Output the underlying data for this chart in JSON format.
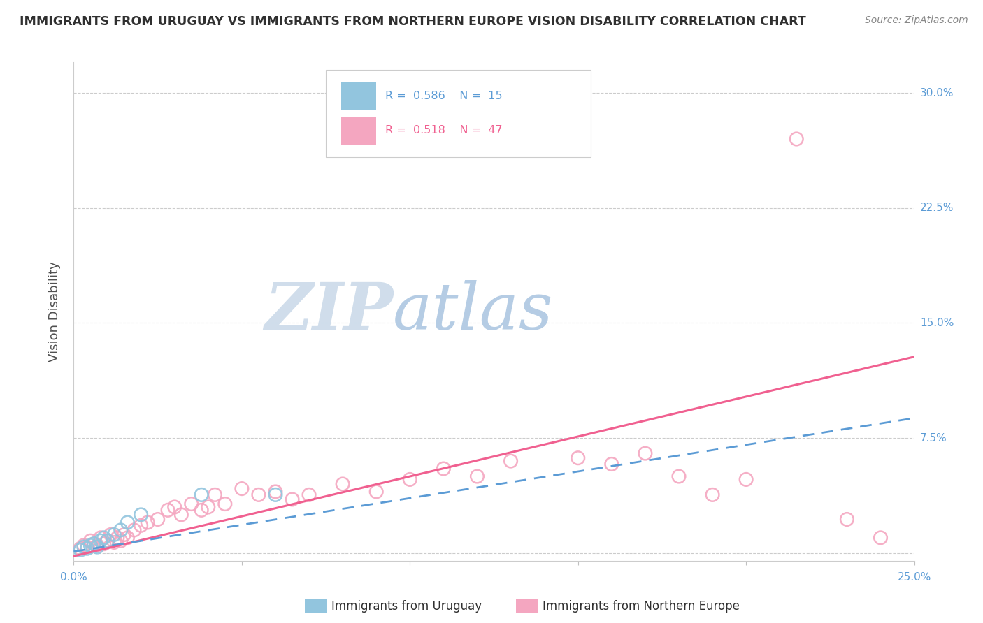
{
  "title": "IMMIGRANTS FROM URUGUAY VS IMMIGRANTS FROM NORTHERN EUROPE VISION DISABILITY CORRELATION CHART",
  "source": "Source: ZipAtlas.com",
  "ylabel": "Vision Disability",
  "xlim": [
    0.0,
    0.25
  ],
  "ylim": [
    -0.005,
    0.32
  ],
  "color_uruguay": "#92C5DE",
  "color_n_europe": "#F4A6C0",
  "color_line_uruguay": "#5B9BD5",
  "color_line_n_europe": "#F06090",
  "color_title": "#303030",
  "color_axis_labels": "#5B9BD5",
  "color_watermark_zip": "#C8D8E8",
  "color_watermark_atlas": "#A8C4E0",
  "uruguay_x": [
    0.002,
    0.003,
    0.004,
    0.005,
    0.006,
    0.007,
    0.008,
    0.009,
    0.01,
    0.012,
    0.014,
    0.016,
    0.02,
    0.038,
    0.06
  ],
  "uruguay_y": [
    0.002,
    0.004,
    0.003,
    0.005,
    0.006,
    0.004,
    0.008,
    0.01,
    0.008,
    0.012,
    0.015,
    0.02,
    0.025,
    0.038,
    0.038
  ],
  "n_europe_x": [
    0.002,
    0.003,
    0.004,
    0.005,
    0.006,
    0.007,
    0.008,
    0.009,
    0.01,
    0.011,
    0.012,
    0.013,
    0.014,
    0.015,
    0.016,
    0.018,
    0.02,
    0.022,
    0.025,
    0.028,
    0.03,
    0.032,
    0.035,
    0.038,
    0.04,
    0.042,
    0.045,
    0.05,
    0.055,
    0.06,
    0.065,
    0.07,
    0.08,
    0.09,
    0.1,
    0.11,
    0.12,
    0.13,
    0.15,
    0.16,
    0.17,
    0.18,
    0.19,
    0.2,
    0.215,
    0.23,
    0.24
  ],
  "n_europe_y": [
    0.003,
    0.005,
    0.004,
    0.008,
    0.006,
    0.005,
    0.01,
    0.006,
    0.008,
    0.012,
    0.007,
    0.01,
    0.008,
    0.012,
    0.01,
    0.015,
    0.018,
    0.02,
    0.022,
    0.028,
    0.03,
    0.025,
    0.032,
    0.028,
    0.03,
    0.038,
    0.032,
    0.042,
    0.038,
    0.04,
    0.035,
    0.038,
    0.045,
    0.04,
    0.048,
    0.055,
    0.05,
    0.06,
    0.062,
    0.058,
    0.065,
    0.05,
    0.038,
    0.048,
    0.27,
    0.022,
    0.01
  ],
  "line_uruguay_x0": 0.0,
  "line_uruguay_y0": 0.001,
  "line_uruguay_x1": 0.25,
  "line_uruguay_y1": 0.088,
  "line_neuropean_x0": 0.0,
  "line_neuropean_y0": -0.002,
  "line_neuropean_x1": 0.25,
  "line_neuropean_y1": 0.128
}
